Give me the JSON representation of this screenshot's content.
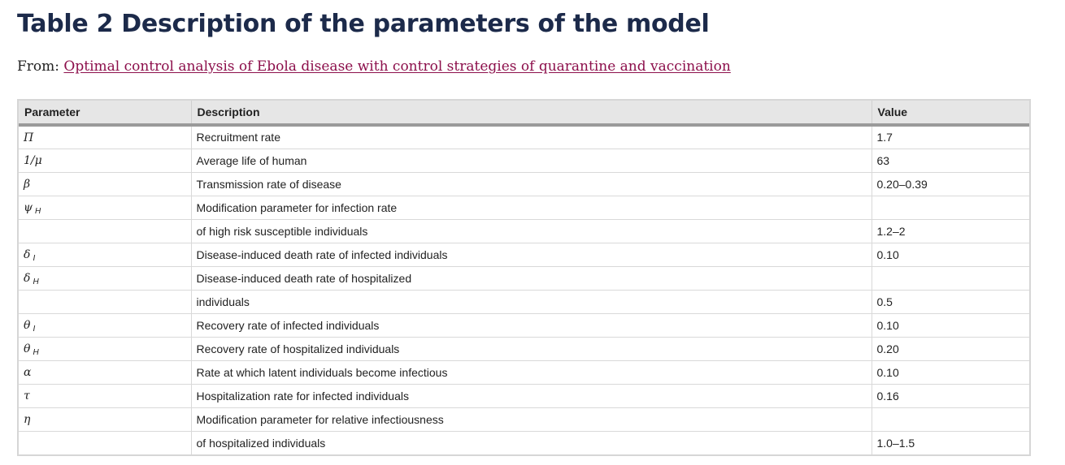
{
  "title": "Table 2 Description of the parameters of the model",
  "from": {
    "prefix": "From: ",
    "link_text": "Optimal control analysis of Ebola disease with control strategies of quarantine and vaccination"
  },
  "table": {
    "headers": [
      "Parameter",
      "Description",
      "Value"
    ],
    "rows": [
      {
        "symbol": "Π",
        "sub": "",
        "description": "Recruitment rate",
        "value": "1.7"
      },
      {
        "symbol": "1/μ",
        "sub": "",
        "description": "Average life of human",
        "value": "63"
      },
      {
        "symbol": "β",
        "sub": "",
        "description": "Transmission rate of disease",
        "value": "0.20–0.39"
      },
      {
        "symbol": "ψ",
        "sub": "H",
        "description": "Modification parameter for infection rate",
        "value": ""
      },
      {
        "symbol": "",
        "sub": "",
        "description": "of high risk susceptible individuals",
        "value": "1.2–2"
      },
      {
        "symbol": "δ",
        "sub": "I",
        "description": "Disease-induced death rate of infected individuals",
        "value": "0.10"
      },
      {
        "symbol": "δ",
        "sub": "H",
        "description": "Disease-induced death rate of hospitalized",
        "value": ""
      },
      {
        "symbol": "",
        "sub": "",
        "description": "individuals",
        "value": "0.5"
      },
      {
        "symbol": "θ",
        "sub": "I",
        "description": "Recovery rate of infected individuals",
        "value": "0.10"
      },
      {
        "symbol": "θ",
        "sub": "H",
        "description": "Recovery rate of hospitalized individuals",
        "value": "0.20"
      },
      {
        "symbol": "α",
        "sub": "",
        "description": "Rate at which latent individuals become infectious",
        "value": "0.10"
      },
      {
        "symbol": "τ",
        "sub": "",
        "description": "Hospitalization rate for infected individuals",
        "value": "0.16"
      },
      {
        "symbol": "η",
        "sub": "",
        "description": "Modification parameter for relative infectiousness",
        "value": ""
      },
      {
        "symbol": "",
        "sub": "",
        "description": "of hospitalized individuals",
        "value": "1.0–1.5"
      }
    ]
  }
}
